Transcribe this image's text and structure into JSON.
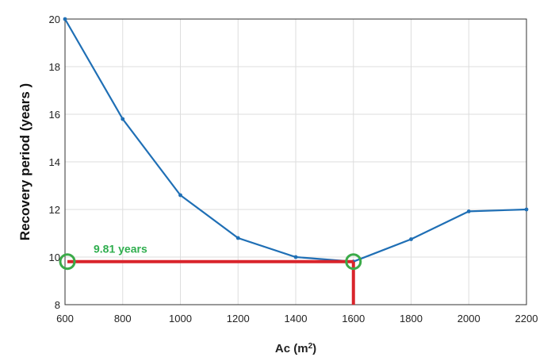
{
  "chart_data": {
    "type": "line",
    "title": "",
    "xlabel": "Ac (m",
    "xlabel_sup": "2",
    "xlabel_end": ")",
    "ylabel": "Recovery period (years )",
    "xlim": [
      600,
      2200
    ],
    "ylim": [
      8,
      20
    ],
    "grid": true,
    "xticks": [
      "600",
      "800",
      "1000",
      "1200",
      "1400",
      "1600",
      "1800",
      "2000",
      "2200"
    ],
    "yticks": [
      "8",
      "10",
      "12",
      "14",
      "16",
      "18",
      "20"
    ],
    "series": [
      {
        "x": [
          600,
          800,
          1000,
          1200,
          1400,
          1600,
          1800,
          2000,
          2200
        ],
        "y": [
          20.0,
          15.8,
          12.6,
          10.8,
          10.0,
          9.81,
          10.75,
          11.92,
          12.0
        ]
      }
    ],
    "annotation": {
      "label": "9.81 years",
      "x": 1600,
      "y": 9.81
    },
    "colors": {
      "line": "#1f6fb5",
      "marker_line": "#d9242b",
      "circle": "#3aaa48",
      "grid": "#dddddd",
      "axis": "#333333"
    }
  }
}
